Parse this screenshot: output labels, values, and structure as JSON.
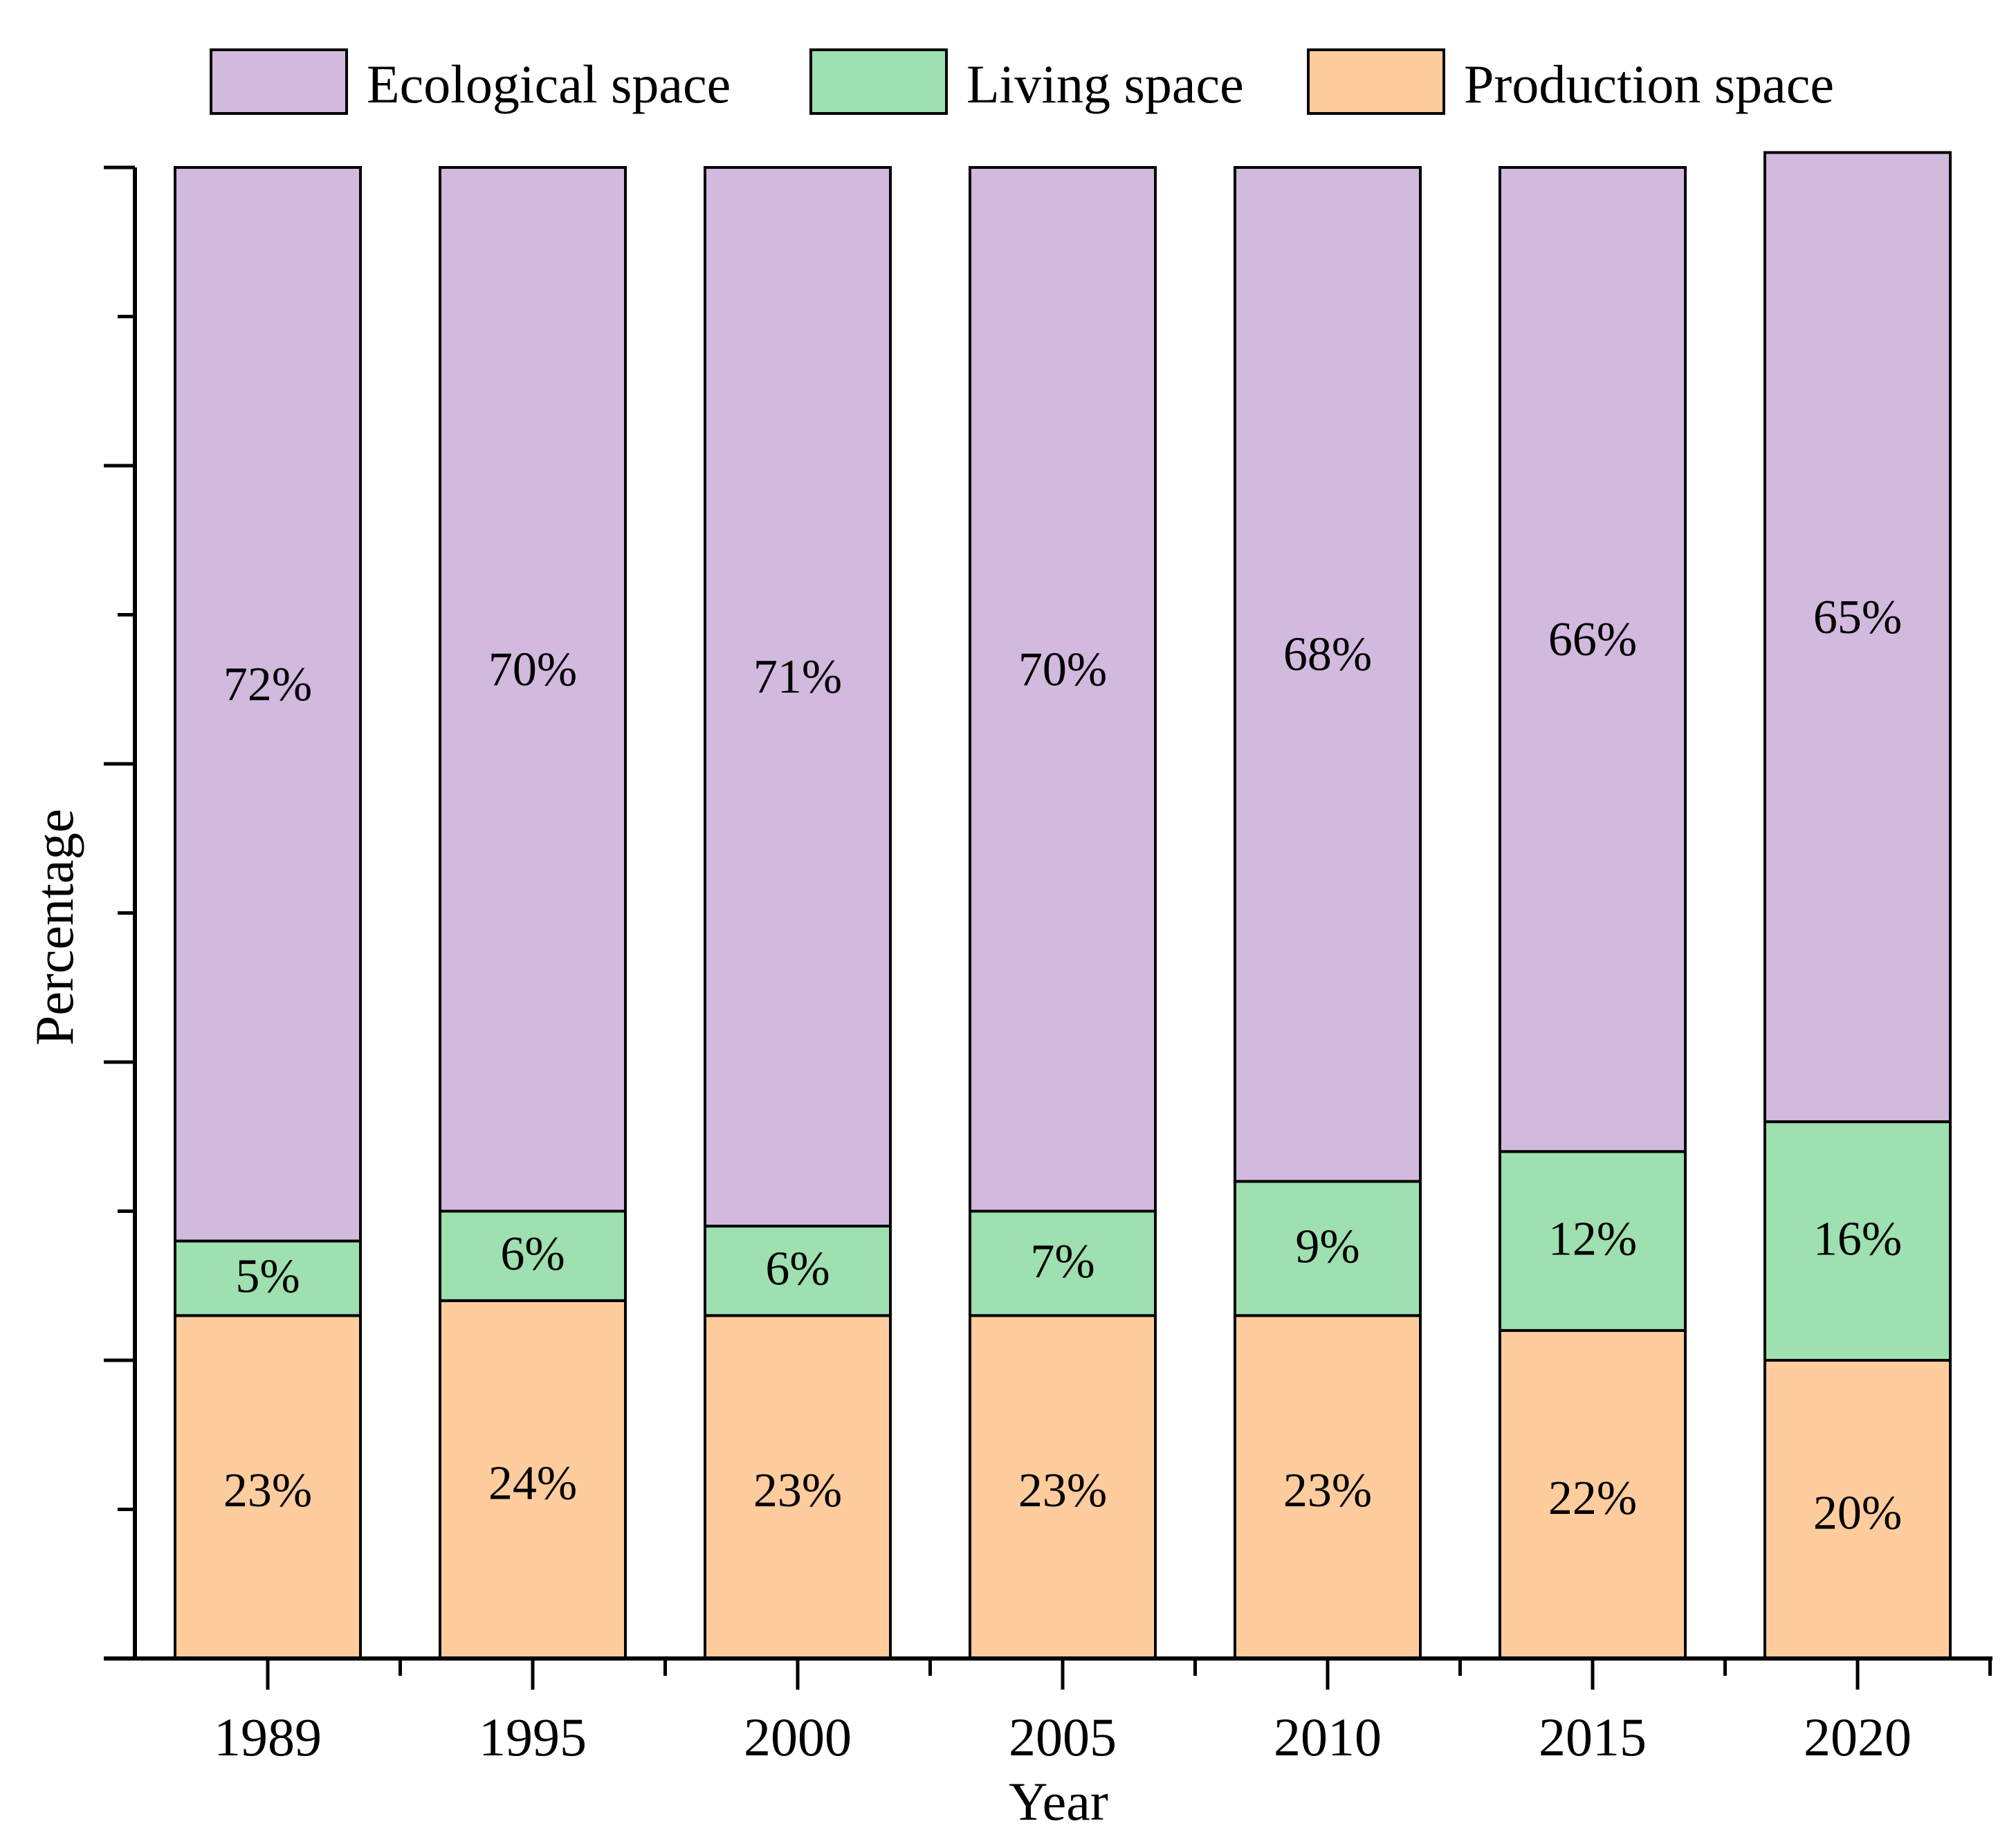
{
  "chart_data": {
    "type": "bar",
    "stacked": true,
    "categories": [
      "1989",
      "1995",
      "2000",
      "2005",
      "2010",
      "2015",
      "2020"
    ],
    "series": [
      {
        "name": "Production space",
        "color": "#FFCC9E",
        "values": [
          23,
          24,
          23,
          23,
          23,
          22,
          20
        ],
        "labels": [
          "23%",
          "24%",
          "23%",
          "23%",
          "23%",
          "22%",
          "20%"
        ]
      },
      {
        "name": "Living space",
        "color": "#9EE0B0",
        "values": [
          5,
          6,
          6,
          7,
          9,
          12,
          16
        ],
        "labels": [
          "5%",
          "6%",
          "6%",
          "7%",
          "9%",
          "12%",
          "16%"
        ]
      },
      {
        "name": "Ecological space",
        "color": "#D2B9DE",
        "values": [
          72,
          70,
          71,
          70,
          68,
          66,
          65
        ],
        "labels": [
          "72%",
          "70%",
          "71%",
          "70%",
          "68%",
          "66%",
          "65%"
        ]
      }
    ],
    "legend_order": [
      "Ecological space",
      "Living space",
      "Production space"
    ],
    "xlabel": "Year",
    "ylabel": "Percentage",
    "ylim": [
      0,
      100
    ],
    "y_tick_labels_shown": false,
    "grid": false,
    "legend_position": "top"
  }
}
